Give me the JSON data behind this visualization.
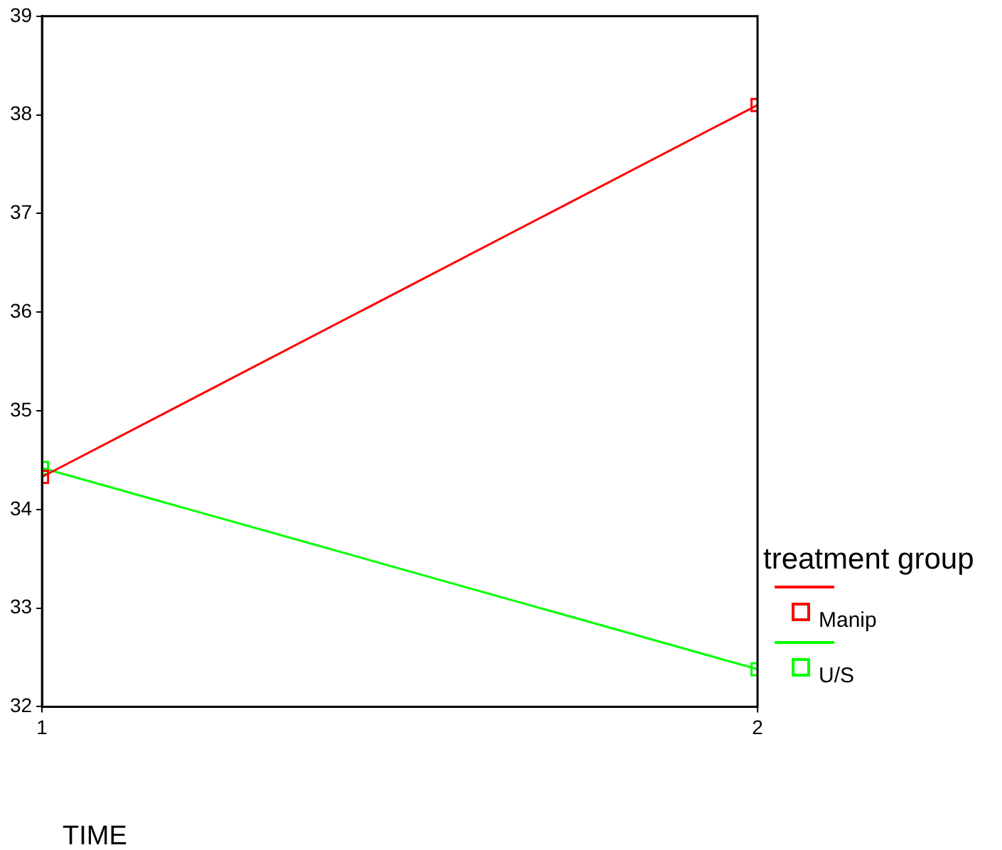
{
  "chart_data": {
    "type": "line",
    "xlabel": "TIME",
    "legend_title": "treatment group",
    "x": [
      1,
      2
    ],
    "xlim": [
      1,
      2
    ],
    "xticks": [
      1,
      2
    ],
    "ylim": [
      32,
      39
    ],
    "yticks": [
      32,
      33,
      34,
      35,
      36,
      37,
      38,
      39
    ],
    "grid": false,
    "legend": "right",
    "marker": "square",
    "line_style": "solid",
    "series": [
      {
        "name": "Manip",
        "color": "#ff0000",
        "values": [
          34.33,
          38.1
        ]
      },
      {
        "name": "U/S",
        "color": "#00ff00",
        "values": [
          34.42,
          32.38
        ]
      }
    ]
  }
}
